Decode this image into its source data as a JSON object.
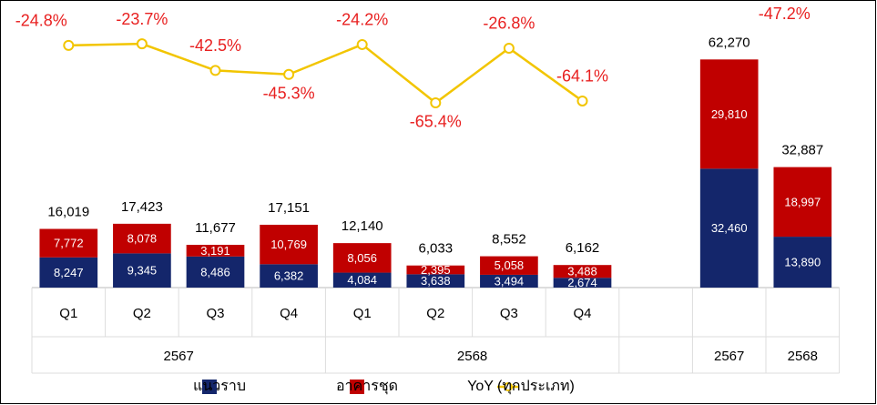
{
  "chart_data": {
    "type": "stacked-bar-line",
    "categories": [
      "Q1",
      "Q2",
      "Q3",
      "Q4",
      "Q1",
      "Q2",
      "Q3",
      "Q4",
      null,
      null,
      null
    ],
    "groups": [
      {
        "label": "2567",
        "span": 4
      },
      {
        "label": "2568",
        "span": 4
      },
      {
        "label": null,
        "span": 1
      },
      {
        "label": "2567",
        "span": 1
      },
      {
        "label": "2568",
        "span": 1
      }
    ],
    "series": [
      {
        "name": "แนวราบ",
        "color": "#14266b",
        "values": [
          8247,
          9345,
          8486,
          6382,
          4084,
          3638,
          3494,
          2674,
          null,
          32460,
          13890
        ],
        "value_labels": [
          "8,247",
          "9,345",
          "8,486",
          "6,382",
          "4,084",
          "3,638",
          "3,494",
          "2,674",
          null,
          "32,460",
          "13,890"
        ]
      },
      {
        "name": "อาคารชุด",
        "color": "#c00000",
        "values": [
          7772,
          8078,
          3191,
          10769,
          8056,
          2395,
          5058,
          3488,
          null,
          29810,
          18997
        ],
        "value_labels": [
          "7,772",
          "8,078",
          "3,191",
          "10,769",
          "8,056",
          "2,395",
          "5,058",
          "3,488",
          null,
          "29,810",
          "18,997"
        ]
      },
      {
        "name": "YoY (ทุกประเภท)",
        "color": "#f2c500",
        "axis": "y2",
        "values": [
          -24.8,
          -23.7,
          -42.5,
          -45.3,
          -24.2,
          -65.4,
          -26.8,
          -64.1,
          null,
          null,
          null
        ],
        "value_labels": [
          "-24.8%",
          "-23.7%",
          "-42.5%",
          "-45.3%",
          "-24.2%",
          "-65.4%",
          "-26.8%",
          "-64.1%",
          null,
          null,
          null
        ]
      }
    ],
    "totals": [
      16019,
      17423,
      11677,
      17151,
      12140,
      6033,
      8552,
      6162,
      null,
      62270,
      32887
    ],
    "total_labels": [
      "16,019",
      "17,423",
      "11,677",
      "17,151",
      "12,140",
      "6,033",
      "8,552",
      "6,162",
      null,
      "62,270",
      "32,887"
    ],
    "annotations": [
      {
        "text": "-47.2%",
        "category": 10,
        "color": "#e82020"
      }
    ],
    "yoy_label_color": "#e82020",
    "ylim": [
      0,
      78000
    ],
    "y2lim": [
      -196,
      6
    ]
  }
}
